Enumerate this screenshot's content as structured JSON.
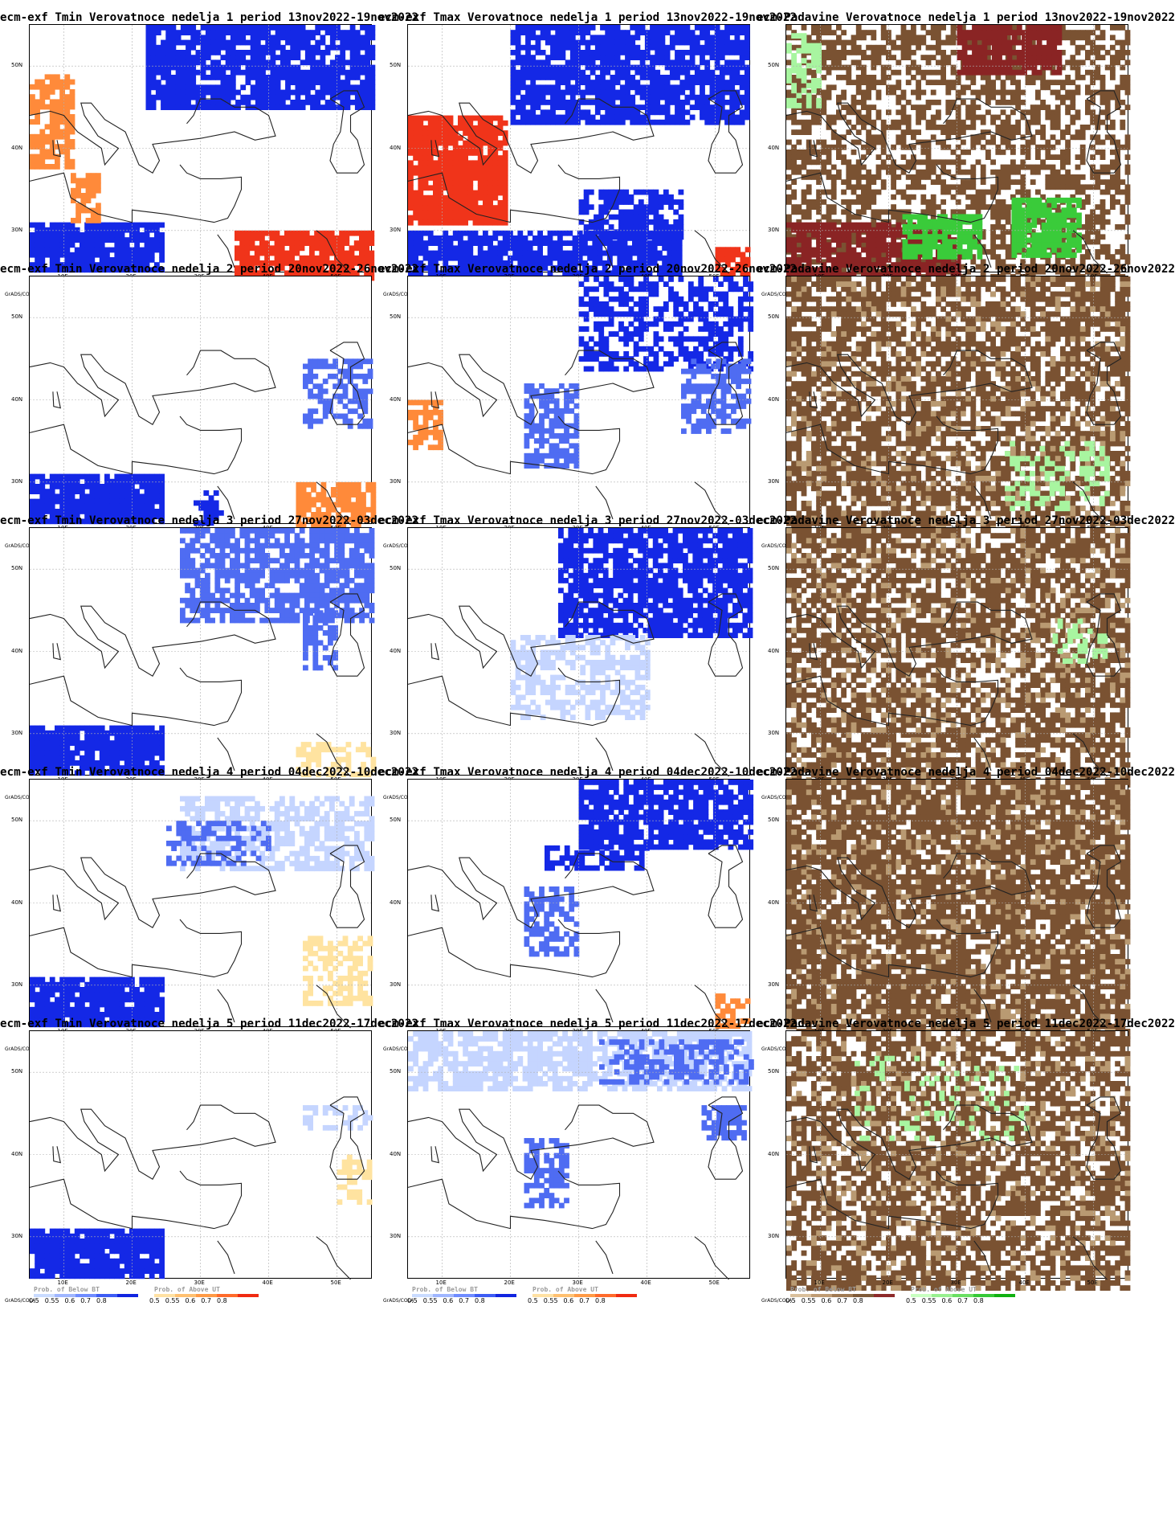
{
  "rows": [
    {
      "week": "1",
      "period": "13nov2022–19nov2022"
    },
    {
      "week": "2",
      "period": "20nov2022–26nov2022"
    },
    {
      "week": "3",
      "period": "27nov2022–03dec2022"
    },
    {
      "week": "4",
      "period": "04dec2022–10dec2022"
    },
    {
      "week": "5",
      "period": "11dec2022–17dec2022"
    }
  ],
  "titles": [
    [
      "ecm-exf Tmin Verovatnoce nedelja 1 period 13nov2022-19nov2022",
      "ecm-exf Tmax Verovatnoce nedelja 1 period 13nov2022-19nov2022",
      "ecm-Padavine Verovatnoce nedelja 1 period 13nov2022-19nov2022"
    ],
    [
      "ecm-exf Tmin Verovatnoce nedelja 2 period 20nov2022-26nov2022",
      "ecm-exf Tmax Verovatnoce nedelja 2 period 20nov2022-26nov2022",
      "ecm-Padavine Verovatnoce nedelja 2 period 20nov2022-26nov2022"
    ],
    [
      "ecm-exf Tmin Verovatnoce nedelja 3 period 27nov2022-03dec2022",
      "ecm-exf Tmax Verovatnoce nedelja 3 period 27nov2022-03dec2022",
      "ecm-Padavine Verovatnoce nedelja 3 period 27nov2022-03dec2022"
    ],
    [
      "ecm-exf Tmin Verovatnoce nedelja 4 period 04dec2022-10dec2022",
      "ecm-exf Tmax Verovatnoce nedelja 4 period 04dec2022-10dec2022",
      "ecm-Padavine Verovatnoce nedelja 4 period 04dec2022-10dec2022"
    ],
    [
      "ecm-exf Tmin Verovatnoce nedelja 5 period 11dec2022-17dec2022",
      "ecm-exf Tmax Verovatnoce nedelja 5 period 11dec2022-17dec2022",
      "ecm-Padavine Verovatnoce nedelja 5 period 11dec2022-17dec2022"
    ]
  ],
  "axes": {
    "lat_labels": [
      "50N",
      "40N",
      "30N"
    ],
    "lon_labels": [
      "10E",
      "20E",
      "30E",
      "40E",
      "50E"
    ]
  },
  "legend": {
    "grads": "GrADS/COLA",
    "ticks": [
      "0.5",
      "0.55",
      "0.6",
      "0.7",
      "0.8"
    ],
    "temp_below_label": "Prob. of Below BT",
    "temp_above_label": "Prob. of Above UT",
    "precip_below_label": "Prob. of Below BT",
    "precip_above_label": "Prob. of Above UT",
    "temp_below_colors": [
      "#c9dbff",
      "#9fb6ff",
      "#6f8cff",
      "#3d5cf4",
      "#1024e0"
    ],
    "temp_above_colors": [
      "#ffe1a3",
      "#ffc070",
      "#ff9a45",
      "#ff6a2a",
      "#f02a10"
    ],
    "precip_below_colors": [
      "#d9bf9b",
      "#bf9b72",
      "#a07a52",
      "#7f5a38",
      "#8e2a2a"
    ],
    "precip_above_colors": [
      "#c8ffc0",
      "#98f08f",
      "#6adf62",
      "#35c936",
      "#10b010"
    ]
  },
  "panel_kinds": [
    "tmin",
    "tmax",
    "precip"
  ],
  "colors": {
    "blue_dark": "#1428e6",
    "blue_mid": "#4f6cf2",
    "blue_light": "#c5d5ff",
    "orange": "#ff8a3a",
    "red": "#f0341a",
    "yellow": "#ffe3a0",
    "brown": "#7a5232",
    "tan": "#b99a72",
    "maroon": "#8a2424",
    "green": "#3acb3a",
    "lightgreen": "#a8f5a0"
  }
}
